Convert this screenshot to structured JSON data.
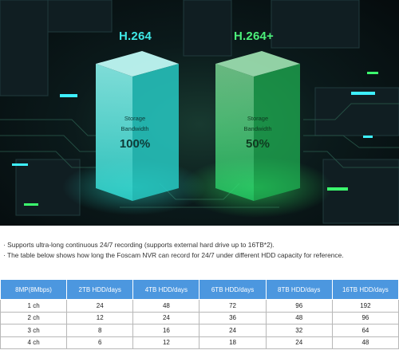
{
  "hero": {
    "codec_left": "H.264",
    "codec_right": "H.264+",
    "left_box": {
      "line1": "Storage",
      "line2": "Bandwidth",
      "percent": "100%"
    },
    "right_box": {
      "line1": "Storage",
      "line2": "Bandwidth",
      "percent": "50%"
    },
    "colors": {
      "left": "#3fe8e6",
      "right": "#4cf07a"
    }
  },
  "notes": [
    "· Supports ultra-long continuous 24/7 recording (supports external hard drive up to 16TB*2).",
    "· The table below shows how long the Foscam NVR can record for 24/7 under different HDD capacity for reference."
  ],
  "table": {
    "header_color": "#4c97df",
    "headers": [
      "8MP(8Mbps)",
      "2TB HDD/days",
      "4TB HDD/days",
      "6TB HDD/days",
      "8TB HDD/days",
      "16TB HDD/days"
    ],
    "rows": [
      [
        "1 ch",
        "24",
        "48",
        "72",
        "96",
        "192"
      ],
      [
        "2 ch",
        "12",
        "24",
        "36",
        "48",
        "96"
      ],
      [
        "3 ch",
        "8",
        "16",
        "24",
        "32",
        "64"
      ],
      [
        "4 ch",
        "6",
        "12",
        "18",
        "24",
        "48"
      ]
    ]
  }
}
